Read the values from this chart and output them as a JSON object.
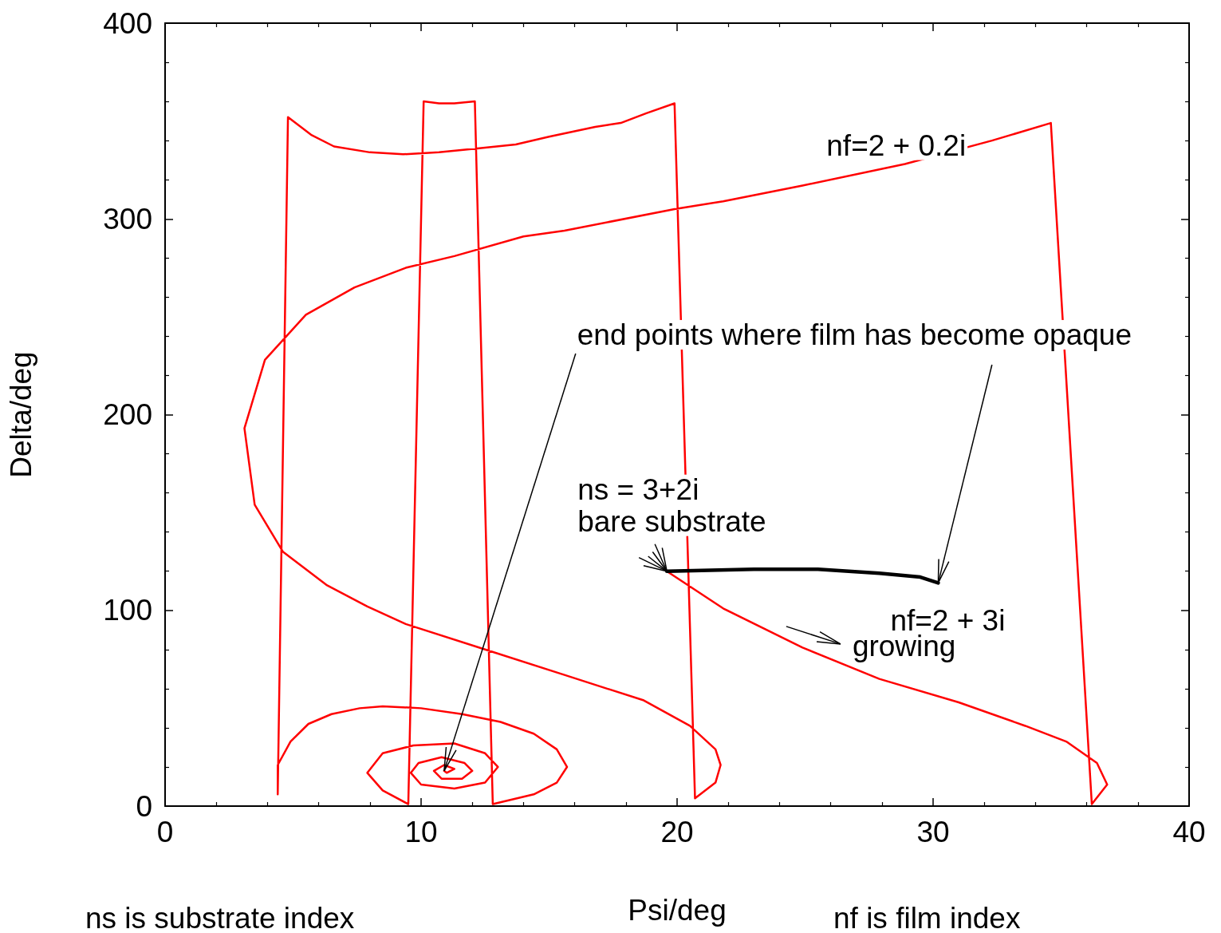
{
  "chart_data": {
    "type": "line",
    "xlabel": "Psi/deg",
    "ylabel": "Delta/deg",
    "xlim": [
      0,
      40
    ],
    "ylim": [
      0,
      400
    ],
    "xticks": [
      0,
      10,
      20,
      30,
      40
    ],
    "yticks": [
      0,
      100,
      200,
      300,
      400
    ],
    "marker": "none",
    "line_style": "solid",
    "series": [
      {
        "name": "nf=2 + 0.2i",
        "color": "#ff0000",
        "x": [
          19.6,
          21.8,
          24.9,
          27.9,
          31.0,
          33.6,
          35.2,
          36.4,
          36.8,
          36.2,
          34.6,
          32.3,
          28.9,
          24.9,
          21.8,
          19.9,
          15.6,
          14.0,
          11.3,
          9.4,
          7.4,
          5.5,
          3.9,
          3.1,
          3.5,
          4.6,
          6.3,
          7.9,
          9.4,
          12.5,
          15.6,
          18.7,
          20.5,
          21.5,
          21.7,
          21.5,
          20.7,
          19.9,
          18.8,
          17.8,
          16.8,
          15.0,
          13.7,
          12.2,
          10.7,
          9.3,
          8.0,
          6.6,
          5.7,
          4.8,
          4.4,
          4.4,
          4.9,
          5.6,
          6.5,
          7.6,
          8.5,
          10.0,
          11.6,
          13.1,
          14.4,
          15.3,
          15.7,
          15.3,
          14.4,
          12.8,
          12.1,
          11.3,
          10.7,
          10.1,
          9.5,
          8.5,
          7.9,
          8.5,
          9.7,
          11.3,
          12.5,
          13.0,
          12.5,
          11.3,
          10.0,
          9.6,
          9.9,
          10.8,
          11.7,
          12.0,
          11.6,
          10.8,
          10.5,
          10.9,
          11.3,
          11.0,
          10.9
        ],
        "values": [
          120,
          101,
          81,
          65,
          53,
          41,
          33,
          22,
          11,
          1,
          349,
          340,
          328,
          317,
          309,
          305,
          294,
          291,
          281,
          275,
          265,
          251,
          228,
          193,
          154,
          130,
          113,
          102,
          93,
          80,
          67,
          54,
          41,
          29,
          21,
          12,
          4,
          359,
          354,
          349,
          347,
          342,
          338,
          336,
          334,
          333,
          334,
          337,
          343,
          352,
          6,
          21,
          33,
          42,
          47,
          50,
          51,
          50,
          47,
          43,
          37,
          29,
          20,
          12,
          6,
          1,
          360,
          359,
          359,
          360,
          1,
          8,
          17,
          27,
          31,
          32,
          27,
          20,
          12,
          9,
          11,
          17,
          22,
          25,
          22,
          18,
          14,
          14,
          18,
          21,
          19,
          17,
          18
        ]
      },
      {
        "name": "nf=2 + 3i",
        "color": "#000000",
        "x": [
          19.6,
          23.0,
          25.5,
          27.9,
          29.5,
          30.2
        ],
        "values": [
          120,
          121,
          121,
          119,
          117,
          114
        ]
      }
    ],
    "annotations": [
      {
        "text": "end points where film has become opaque",
        "x": 30.2,
        "y": 114
      },
      {
        "text": "ns = 3+2i\nbare substrate",
        "x": 19.6,
        "y": 120
      },
      "growing",
      "ns is substrate index",
      "nf is film index"
    ]
  }
}
